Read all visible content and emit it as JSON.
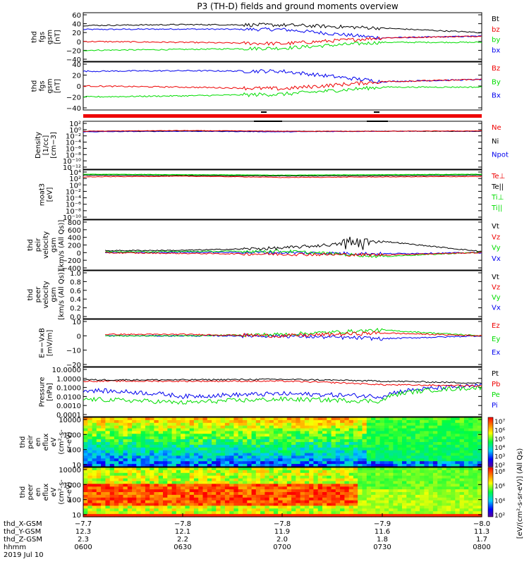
{
  "title": "P3 (TH-D) fields and ground moments overview",
  "colors": {
    "black": "#000000",
    "red": "#ee0000",
    "green": "#00dd00",
    "blue": "#0000ee"
  },
  "panels": [
    {
      "id": "p1",
      "ylabel": [
        "thd",
        "fgs",
        "gsm",
        "[nT]"
      ],
      "ticks": [
        "60",
        "40",
        "20",
        "0",
        "−20",
        "−40"
      ],
      "tickvals": [
        60,
        40,
        20,
        0,
        -20,
        -40
      ],
      "legend": [
        {
          "label": "Bt",
          "color": "#000000"
        },
        {
          "label": "bz",
          "color": "#ee0000"
        },
        {
          "label": "by",
          "color": "#00dd00"
        },
        {
          "label": "bx",
          "color": "#0000ee"
        }
      ]
    },
    {
      "id": "p2",
      "ylabel": [
        "thd",
        "fgs",
        "gsm",
        "[nT]"
      ],
      "ticks": [
        "40",
        "20",
        "0",
        "−20",
        "−40"
      ],
      "tickvals": [
        40,
        20,
        0,
        -20,
        -40
      ],
      "legend": [
        {
          "label": "Bz",
          "color": "#ee0000"
        },
        {
          "label": "By",
          "color": "#00dd00"
        },
        {
          "label": "Bx",
          "color": "#0000ee"
        }
      ]
    },
    {
      "id": "p3",
      "ylabel": [
        "Density",
        "[1/cc]",
        "[cm−3]"
      ],
      "ticks": [
        "10²",
        "10⁰",
        "10⁻²",
        "10⁻⁴",
        "10⁻⁶",
        "10⁻⁸",
        "10⁻¹⁰",
        "10⁻¹²"
      ],
      "tickvals": [
        2,
        0,
        -2,
        -4,
        -6,
        -8,
        -10,
        -12
      ],
      "legend": [
        {
          "label": "Ne",
          "color": "#ee0000"
        },
        {
          "label": "Ni",
          "color": "#000000"
        },
        {
          "label": "Npot",
          "color": "#0000ee"
        }
      ]
    },
    {
      "id": "p4",
      "ylabel": [
        "moat3",
        "[eV]"
      ],
      "ticks": [
        "10⁴",
        "10²",
        "10⁰",
        "10⁻²",
        "10⁻⁴",
        "10⁻⁶",
        "10⁻⁸",
        "10⁻¹⁰"
      ],
      "tickvals": [
        4,
        2,
        0,
        -2,
        -4,
        -6,
        -8,
        -10
      ],
      "legend": [
        {
          "label": "Te⊥",
          "color": "#ee0000"
        },
        {
          "label": "Te||",
          "color": "#000000"
        },
        {
          "label": "Ti⊥",
          "color": "#00dd00"
        },
        {
          "label": "Ti||",
          "color": "#00dd00"
        }
      ]
    },
    {
      "id": "p5",
      "ylabel": [
        "thd",
        "peir",
        "velocity",
        "gsm",
        "[km/s (All Qs)]"
      ],
      "ticks": [
        "800",
        "600",
        "400",
        "200",
        "0",
        "−200",
        "−400"
      ],
      "tickvals": [
        800,
        600,
        400,
        200,
        0,
        -200,
        -400
      ],
      "legend": [
        {
          "label": "Vt",
          "color": "#000000"
        },
        {
          "label": "Vz",
          "color": "#ee0000"
        },
        {
          "label": "Vy",
          "color": "#00dd00"
        },
        {
          "label": "Vx",
          "color": "#0000ee"
        }
      ]
    },
    {
      "id": "p6",
      "ylabel": [
        "thd",
        "peer",
        "velocity",
        "gsm",
        "[km/s (All Qs)]"
      ],
      "ticks": [
        "1.0",
        "0.8",
        "0.6",
        "0.4",
        "0.2",
        "0.0"
      ],
      "tickvals": [
        1.0,
        0.8,
        0.6,
        0.4,
        0.2,
        0.0
      ],
      "legend": [
        {
          "label": "Vt",
          "color": "#000000"
        },
        {
          "label": "Vz",
          "color": "#ee0000"
        },
        {
          "label": "Vy",
          "color": "#00dd00"
        },
        {
          "label": "Vx",
          "color": "#0000ee"
        }
      ]
    },
    {
      "id": "p7",
      "ylabel": [
        "E=−VxB",
        "[mV/m]"
      ],
      "ticks": [
        "10",
        "0",
        "−10",
        "−20"
      ],
      "tickvals": [
        10,
        0,
        -10,
        -20
      ],
      "legend": [
        {
          "label": "Ez",
          "color": "#ee0000"
        },
        {
          "label": "Ey",
          "color": "#00dd00"
        },
        {
          "label": "Ex",
          "color": "#0000ee"
        }
      ]
    },
    {
      "id": "p8",
      "ylabel": [
        "Pressure",
        "[nPa]"
      ],
      "ticks": [
        "10.0000",
        "1.0000",
        "0.1000",
        "0.0100",
        "0.0010",
        "0.0001"
      ],
      "tickvals": [
        1,
        0,
        -1,
        -2,
        -3,
        -4
      ],
      "legend": [
        {
          "label": "Pt",
          "color": "#000000"
        },
        {
          "label": "Pb",
          "color": "#ee0000"
        },
        {
          "label": "Pe",
          "color": "#00dd00"
        },
        {
          "label": "Pi",
          "color": "#0000ee"
        }
      ]
    },
    {
      "id": "p9",
      "ylabel": [
        "thd",
        "peir",
        "en",
        "eflux",
        "eV",
        "(cm²-s-",
        "sr-eV)"
      ],
      "ticks": [
        "10000",
        "1000",
        "100",
        "10"
      ],
      "tickvals": [
        4,
        3,
        2,
        1
      ]
    },
    {
      "id": "p10",
      "ylabel": [
        "thd",
        "peer",
        "en",
        "eflux",
        "eV",
        "(cm²-s-",
        "sr-eV)"
      ],
      "ticks": [
        "10000",
        "1000",
        "100",
        "10"
      ],
      "tickvals": [
        4,
        3,
        2,
        1
      ]
    }
  ],
  "colorbar": {
    "label": "[eV/(cm²-s-sr-eV)] (All Qs)",
    "ticks_top": [
      "10⁷",
      "10⁶",
      "10⁵",
      "10⁴",
      "10³",
      "10²"
    ],
    "ticks_bottom": [
      "10⁸",
      "10⁶",
      "10⁴",
      "10²"
    ]
  },
  "xaxis": {
    "rows": [
      {
        "label": "thd_X-GSM",
        "values": [
          "−7.7",
          "−7.8",
          "−7.8",
          "−7.9",
          "−8.0"
        ]
      },
      {
        "label": "thd_Y-GSM",
        "values": [
          "12.3",
          "12.1",
          "11.9",
          "11.6",
          "11.3"
        ]
      },
      {
        "label": "thd_Z-GSM",
        "values": [
          "2.3",
          "2.2",
          "2.0",
          "1.8",
          "1.7"
        ]
      },
      {
        "label": "hhmm",
        "values": [
          "0600",
          "0630",
          "0700",
          "0730",
          "0800"
        ]
      }
    ],
    "date": "2019 Jul 10"
  },
  "chart_data": [
    {
      "type": "line",
      "panel": "fgs gsm B",
      "ylim": [
        -50,
        65
      ],
      "x": [
        "0600",
        "0630",
        "0700",
        "0730",
        "0800"
      ],
      "series": [
        {
          "name": "Bt",
          "values": [
            36,
            38,
            37,
            30,
            20
          ]
        },
        {
          "name": "bz",
          "values": [
            0,
            -2,
            -5,
            8,
            12
          ]
        },
        {
          "name": "by",
          "values": [
            -20,
            -18,
            -15,
            -2,
            -2
          ]
        },
        {
          "name": "bx",
          "values": [
            27,
            28,
            27,
            8,
            12
          ]
        }
      ]
    },
    {
      "type": "line",
      "panel": "fgs gsm B (2)",
      "ylim": [
        -55,
        45
      ],
      "x": [
        "0600",
        "0630",
        "0700",
        "0730",
        "0800"
      ],
      "series": [
        {
          "name": "Bz",
          "values": [
            0,
            -2,
            -5,
            8,
            12
          ]
        },
        {
          "name": "By",
          "values": [
            -20,
            -18,
            -15,
            -2,
            -2
          ]
        },
        {
          "name": "Bx",
          "values": [
            27,
            28,
            27,
            8,
            12
          ]
        }
      ]
    },
    {
      "type": "line",
      "panel": "Density",
      "yscale": "log",
      "ylim": [
        1e-12,
        100.0
      ],
      "x": [
        "0600",
        "0630",
        "0700",
        "0730",
        "0800"
      ],
      "series": [
        {
          "name": "Ne",
          "values": [
            0.3,
            0.5,
            0.3,
            0.3,
            0.4
          ]
        },
        {
          "name": "Ni",
          "values": [
            0.3,
            0.4,
            0.3,
            0.3,
            0.3
          ]
        },
        {
          "name": "Npot",
          "values": [
            0.2,
            0.3,
            0.2,
            0.3,
            0.3
          ]
        }
      ]
    },
    {
      "type": "line",
      "panel": "moat3",
      "yscale": "log",
      "ylim": [
        1e-10,
        10000.0
      ],
      "x": [
        "0600",
        "0630",
        "0700",
        "0730",
        "0800"
      ],
      "series": [
        {
          "name": "Te⊥",
          "values": [
            300,
            500,
            200,
            300,
            400
          ]
        },
        {
          "name": "Te||",
          "values": [
            1000,
            800,
            600,
            700,
            1000
          ]
        },
        {
          "name": "Ti⊥",
          "values": [
            2000,
            1500,
            1000,
            1500,
            2000
          ]
        },
        {
          "name": "Ti||",
          "values": [
            2000,
            1500,
            1000,
            1500,
            2000
          ]
        }
      ]
    },
    {
      "type": "line",
      "panel": "peir velocity",
      "ylim": [
        -400,
        800
      ],
      "x": [
        "0600",
        "0630",
        "0700",
        "0730",
        "0800"
      ],
      "series": [
        {
          "name": "Vt",
          "values": [
            50,
            60,
            120,
            300,
            30
          ]
        },
        {
          "name": "Vz",
          "values": [
            0,
            -20,
            -40,
            -60,
            0
          ]
        },
        {
          "name": "Vy",
          "values": [
            20,
            30,
            40,
            -100,
            10
          ]
        },
        {
          "name": "Vx",
          "values": [
            0,
            10,
            0,
            -30,
            0
          ]
        }
      ]
    },
    {
      "type": "line",
      "panel": "peer velocity",
      "ylim": [
        0,
        1
      ],
      "series": []
    },
    {
      "type": "line",
      "panel": "E=-VxB",
      "ylim": [
        -25,
        12
      ],
      "x": [
        "0600",
        "0630",
        "0700",
        "0730",
        "0800"
      ],
      "series": [
        {
          "name": "Ez",
          "values": [
            1,
            1,
            0,
            2,
            0
          ]
        },
        {
          "name": "Ey",
          "values": [
            0,
            0,
            1,
            4,
            0
          ]
        },
        {
          "name": "Ex",
          "values": [
            0,
            0,
            0,
            -2,
            0
          ]
        }
      ]
    },
    {
      "type": "line",
      "panel": "Pressure",
      "yscale": "log",
      "ylim": [
        0.0001,
        10
      ],
      "x": [
        "0600",
        "0630",
        "0700",
        "0730",
        "0800"
      ],
      "series": [
        {
          "name": "Pt",
          "values": [
            0.7,
            0.7,
            0.8,
            0.5,
            0.3
          ]
        },
        {
          "name": "Pb",
          "values": [
            0.5,
            0.5,
            0.5,
            0.2,
            0.15
          ]
        },
        {
          "name": "Pe",
          "values": [
            0.005,
            0.002,
            0.005,
            0.003,
            0.1
          ]
        },
        {
          "name": "Pi",
          "values": [
            0.05,
            0.01,
            0.02,
            0.01,
            0.15
          ]
        }
      ]
    },
    {
      "type": "heatmap",
      "panel": "peir eflux",
      "yscale": "log",
      "ylim": [
        5,
        25000
      ]
    },
    {
      "type": "heatmap",
      "panel": "peer eflux",
      "yscale": "log",
      "ylim": [
        5,
        25000
      ]
    }
  ]
}
